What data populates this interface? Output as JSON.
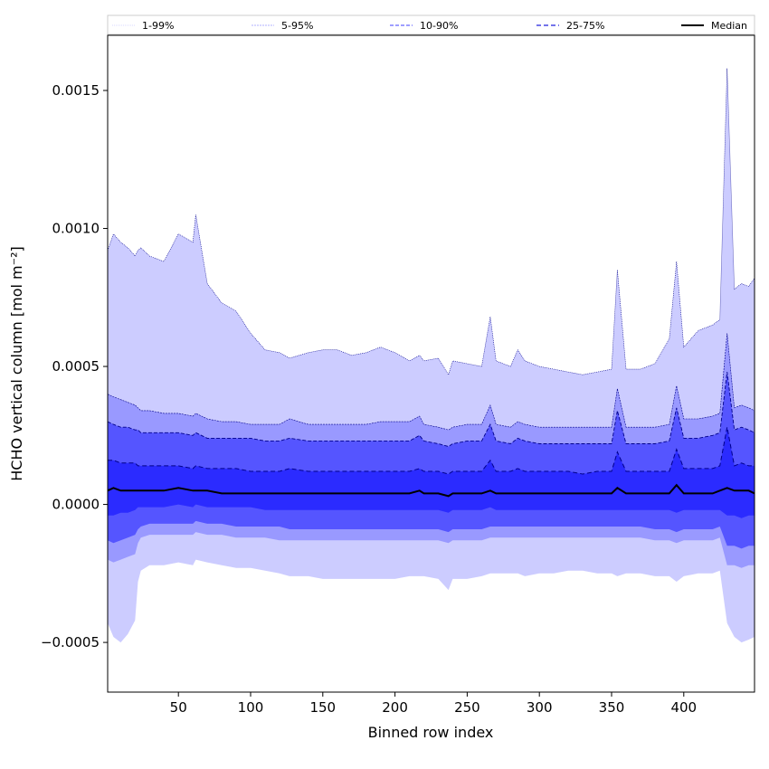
{
  "chart_data": {
    "type": "area",
    "xlabel": "Binned row index",
    "ylabel": "HCHO vertical column [mol m⁻²]",
    "xlim": [
      1,
      449
    ],
    "ylim": [
      -0.00068,
      0.0017
    ],
    "xticks": [
      50,
      100,
      150,
      200,
      250,
      300,
      350,
      400
    ],
    "yticks": [
      -0.0005,
      0.0,
      0.0005,
      0.001,
      0.0015
    ],
    "ytick_labels": [
      "−0.0005",
      "0.0000",
      "0.0005",
      "0.0010",
      "0.0015"
    ],
    "legend_position": "top (above plot, 5 columns)",
    "grid": false,
    "colors": {
      "band_1_99": "#ccccff",
      "band_5_95": "#9999ff",
      "band_10_90": "#5555ff",
      "band_25_75": "#2b2bff",
      "percentile_line": "#00008b",
      "median": "#000000"
    },
    "x_knots": [
      1,
      5,
      10,
      15,
      20,
      22,
      24,
      30,
      40,
      50,
      60,
      62,
      70,
      80,
      90,
      100,
      110,
      120,
      127,
      140,
      150,
      160,
      170,
      180,
      190,
      200,
      210,
      217,
      220,
      230,
      237,
      240,
      250,
      260,
      266,
      270,
      280,
      285,
      290,
      300,
      310,
      320,
      330,
      340,
      350,
      354,
      360,
      370,
      380,
      390,
      395,
      400,
      410,
      420,
      425,
      430,
      435,
      440,
      445,
      449
    ],
    "series": [
      {
        "name": "1-99%",
        "role": "outer band 1st-99th percentile",
        "upper": [
          0.00092,
          0.00098,
          0.00095,
          0.00093,
          0.0009,
          0.00092,
          0.00093,
          0.0009,
          0.00088,
          0.00098,
          0.00095,
          0.00105,
          0.0008,
          0.00073,
          0.0007,
          0.00062,
          0.00056,
          0.00055,
          0.00053,
          0.00055,
          0.00056,
          0.00056,
          0.00054,
          0.00055,
          0.00057,
          0.00055,
          0.00052,
          0.00054,
          0.00052,
          0.00053,
          0.00047,
          0.00052,
          0.00051,
          0.0005,
          0.00068,
          0.00052,
          0.0005,
          0.00056,
          0.00052,
          0.0005,
          0.00049,
          0.00048,
          0.00047,
          0.00048,
          0.00049,
          0.00085,
          0.00049,
          0.00049,
          0.00051,
          0.0006,
          0.00088,
          0.00057,
          0.00063,
          0.00065,
          0.00067,
          0.00158,
          0.00078,
          0.0008,
          0.00079,
          0.00082
        ],
        "lower": [
          -0.00043,
          -0.00048,
          -0.0005,
          -0.00047,
          -0.00042,
          -0.00028,
          -0.00024,
          -0.00022,
          -0.00022,
          -0.00021,
          -0.00022,
          -0.0002,
          -0.00021,
          -0.00022,
          -0.00023,
          -0.00023,
          -0.00024,
          -0.00025,
          -0.00026,
          -0.00026,
          -0.00027,
          -0.00027,
          -0.00027,
          -0.00027,
          -0.00027,
          -0.00027,
          -0.00026,
          -0.00026,
          -0.00026,
          -0.00027,
          -0.00031,
          -0.00027,
          -0.00027,
          -0.00026,
          -0.00025,
          -0.00025,
          -0.00025,
          -0.00025,
          -0.00026,
          -0.00025,
          -0.00025,
          -0.00024,
          -0.00024,
          -0.00025,
          -0.00025,
          -0.00026,
          -0.00025,
          -0.00025,
          -0.00026,
          -0.00026,
          -0.00028,
          -0.00026,
          -0.00025,
          -0.00025,
          -0.00024,
          -0.00043,
          -0.00048,
          -0.0005,
          -0.00049,
          -0.00048
        ]
      },
      {
        "name": "5-95%",
        "role": "band 5th-95th percentile",
        "upper": [
          0.0004,
          0.00039,
          0.00038,
          0.00037,
          0.00036,
          0.00035,
          0.00034,
          0.00034,
          0.00033,
          0.00033,
          0.00032,
          0.00033,
          0.00031,
          0.0003,
          0.0003,
          0.00029,
          0.00029,
          0.00029,
          0.00031,
          0.00029,
          0.00029,
          0.00029,
          0.00029,
          0.00029,
          0.0003,
          0.0003,
          0.0003,
          0.00032,
          0.00029,
          0.00028,
          0.00027,
          0.00028,
          0.00029,
          0.00029,
          0.00036,
          0.00029,
          0.00028,
          0.0003,
          0.00029,
          0.00028,
          0.00028,
          0.00028,
          0.00028,
          0.00028,
          0.00028,
          0.00042,
          0.00028,
          0.00028,
          0.00028,
          0.00029,
          0.00043,
          0.00031,
          0.00031,
          0.00032,
          0.00033,
          0.00062,
          0.00035,
          0.00036,
          0.00035,
          0.00034
        ],
        "lower": [
          -0.0002,
          -0.00021,
          -0.0002,
          -0.00019,
          -0.00018,
          -0.00014,
          -0.00012,
          -0.00011,
          -0.00011,
          -0.00011,
          -0.00011,
          -0.0001,
          -0.00011,
          -0.00011,
          -0.00012,
          -0.00012,
          -0.00012,
          -0.00013,
          -0.00013,
          -0.00013,
          -0.00013,
          -0.00013,
          -0.00013,
          -0.00013,
          -0.00013,
          -0.00013,
          -0.00013,
          -0.00013,
          -0.00013,
          -0.00013,
          -0.00014,
          -0.00013,
          -0.00013,
          -0.00013,
          -0.00012,
          -0.00012,
          -0.00012,
          -0.00012,
          -0.00012,
          -0.00012,
          -0.00012,
          -0.00012,
          -0.00012,
          -0.00012,
          -0.00012,
          -0.00012,
          -0.00012,
          -0.00012,
          -0.00013,
          -0.00013,
          -0.00014,
          -0.00013,
          -0.00013,
          -0.00013,
          -0.00012,
          -0.00022,
          -0.00022,
          -0.00023,
          -0.00022,
          -0.00022
        ]
      },
      {
        "name": "10-90%",
        "role": "band 10th-90th percentile",
        "upper": [
          0.0003,
          0.00029,
          0.00028,
          0.00028,
          0.00027,
          0.00027,
          0.00026,
          0.00026,
          0.00026,
          0.00026,
          0.00025,
          0.00026,
          0.00024,
          0.00024,
          0.00024,
          0.00024,
          0.00023,
          0.00023,
          0.00024,
          0.00023,
          0.00023,
          0.00023,
          0.00023,
          0.00023,
          0.00023,
          0.00023,
          0.00023,
          0.00025,
          0.00023,
          0.00022,
          0.00021,
          0.00022,
          0.00023,
          0.00023,
          0.00029,
          0.00023,
          0.00022,
          0.00024,
          0.00023,
          0.00022,
          0.00022,
          0.00022,
          0.00022,
          0.00022,
          0.00022,
          0.00034,
          0.00022,
          0.00022,
          0.00022,
          0.00023,
          0.00035,
          0.00024,
          0.00024,
          0.00025,
          0.00026,
          0.00048,
          0.00027,
          0.00028,
          0.00027,
          0.00026
        ],
        "lower": [
          -0.00013,
          -0.00014,
          -0.00013,
          -0.00012,
          -0.00011,
          -9e-05,
          -8e-05,
          -7e-05,
          -7e-05,
          -7e-05,
          -7e-05,
          -6e-05,
          -7e-05,
          -7e-05,
          -8e-05,
          -8e-05,
          -8e-05,
          -8e-05,
          -9e-05,
          -9e-05,
          -9e-05,
          -9e-05,
          -9e-05,
          -9e-05,
          -9e-05,
          -9e-05,
          -9e-05,
          -9e-05,
          -9e-05,
          -9e-05,
          -0.0001,
          -9e-05,
          -9e-05,
          -9e-05,
          -8e-05,
          -8e-05,
          -8e-05,
          -8e-05,
          -8e-05,
          -8e-05,
          -8e-05,
          -8e-05,
          -8e-05,
          -8e-05,
          -8e-05,
          -8e-05,
          -8e-05,
          -8e-05,
          -9e-05,
          -9e-05,
          -0.0001,
          -9e-05,
          -9e-05,
          -9e-05,
          -8e-05,
          -0.00015,
          -0.00015,
          -0.00016,
          -0.00015,
          -0.00015
        ]
      },
      {
        "name": "25-75%",
        "role": "band 25th-75th percentile",
        "upper": [
          0.00016,
          0.00016,
          0.00015,
          0.00015,
          0.00015,
          0.00014,
          0.00014,
          0.00014,
          0.00014,
          0.00014,
          0.00013,
          0.00014,
          0.00013,
          0.00013,
          0.00013,
          0.00012,
          0.00012,
          0.00012,
          0.00013,
          0.00012,
          0.00012,
          0.00012,
          0.00012,
          0.00012,
          0.00012,
          0.00012,
          0.00012,
          0.00013,
          0.00012,
          0.00012,
          0.00011,
          0.00012,
          0.00012,
          0.00012,
          0.00016,
          0.00012,
          0.00012,
          0.00013,
          0.00012,
          0.00012,
          0.00012,
          0.00012,
          0.00011,
          0.00012,
          0.00012,
          0.00019,
          0.00012,
          0.00012,
          0.00012,
          0.00012,
          0.0002,
          0.00013,
          0.00013,
          0.00013,
          0.00014,
          0.00028,
          0.00014,
          0.00015,
          0.00014,
          0.00014
        ],
        "lower": [
          -4e-05,
          -4e-05,
          -3e-05,
          -3e-05,
          -2e-05,
          -1e-05,
          -1e-05,
          -1e-05,
          -1e-05,
          0.0,
          -1e-05,
          0.0,
          -1e-05,
          -1e-05,
          -1e-05,
          -1e-05,
          -2e-05,
          -2e-05,
          -2e-05,
          -2e-05,
          -2e-05,
          -2e-05,
          -2e-05,
          -2e-05,
          -2e-05,
          -2e-05,
          -2e-05,
          -2e-05,
          -2e-05,
          -2e-05,
          -3e-05,
          -2e-05,
          -2e-05,
          -2e-05,
          -1e-05,
          -2e-05,
          -2e-05,
          -2e-05,
          -2e-05,
          -2e-05,
          -2e-05,
          -2e-05,
          -2e-05,
          -2e-05,
          -2e-05,
          -2e-05,
          -2e-05,
          -2e-05,
          -2e-05,
          -2e-05,
          -3e-05,
          -2e-05,
          -2e-05,
          -2e-05,
          -2e-05,
          -4e-05,
          -4e-05,
          -5e-05,
          -4e-05,
          -4e-05
        ]
      },
      {
        "name": "Median",
        "role": "median line",
        "values": [
          5e-05,
          6e-05,
          5e-05,
          5e-05,
          5e-05,
          5e-05,
          5e-05,
          5e-05,
          5e-05,
          6e-05,
          5e-05,
          5e-05,
          5e-05,
          4e-05,
          4e-05,
          4e-05,
          4e-05,
          4e-05,
          4e-05,
          4e-05,
          4e-05,
          4e-05,
          4e-05,
          4e-05,
          4e-05,
          4e-05,
          4e-05,
          5e-05,
          4e-05,
          4e-05,
          3e-05,
          4e-05,
          4e-05,
          4e-05,
          5e-05,
          4e-05,
          4e-05,
          4e-05,
          4e-05,
          4e-05,
          4e-05,
          4e-05,
          4e-05,
          4e-05,
          4e-05,
          6e-05,
          4e-05,
          4e-05,
          4e-05,
          4e-05,
          7e-05,
          4e-05,
          4e-05,
          4e-05,
          5e-05,
          6e-05,
          5e-05,
          5e-05,
          5e-05,
          4e-05
        ]
      }
    ]
  }
}
